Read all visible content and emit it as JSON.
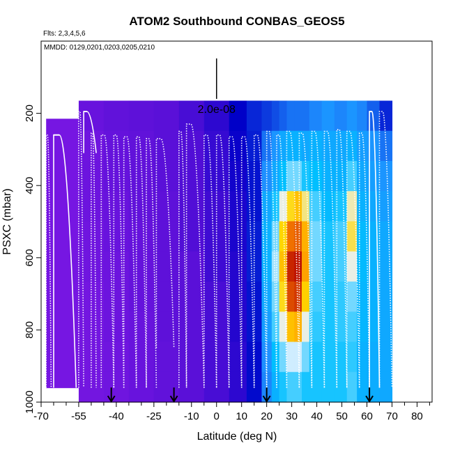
{
  "chart_data": {
    "type": "heatmap",
    "title": "ATOM2 Southbound CONBAS_GEOS5",
    "flights_label": "Flts: 2,3,4,5,6",
    "dates_label": "MMDD: 0129,0201,0203,0205,0210",
    "xlabel": "Latitude (deg N)",
    "ylabel": "PSXC (mbar)",
    "xlim": [
      -70,
      86
    ],
    "ylim": [
      1000,
      0
    ],
    "x_ticks": [
      -70,
      -55,
      -40,
      -25,
      -10,
      0,
      10,
      20,
      30,
      40,
      50,
      60,
      70,
      80
    ],
    "x_tick_labels": [
      "-70",
      "-55",
      "-40",
      "-25",
      "-10",
      "0",
      "10",
      "20",
      "30",
      "40",
      "50",
      "60",
      "70",
      "80"
    ],
    "x_minor_ticks": [
      -65,
      -60,
      -50,
      -45,
      -35,
      -30,
      -20,
      -15,
      -5,
      5,
      15,
      25,
      35,
      45,
      55,
      65,
      75,
      85
    ],
    "y_ticks": [
      200,
      400,
      600,
      800,
      1000
    ],
    "y_tick_labels": [
      "200",
      "400",
      "600",
      "800",
      "1000"
    ],
    "scale_marker": {
      "x": 0,
      "p_top": 48,
      "p_bottom": 160,
      "label": "2.0e-08"
    },
    "arrows_lat": [
      -42,
      -17,
      20,
      61
    ],
    "heatmap_columns": [
      {
        "x0": -68,
        "x1": -55,
        "p_top": 215,
        "p_bottom": 960,
        "level": [
          0.12,
          0.12,
          0.12,
          0.12,
          0.12,
          0.12,
          0.12,
          0.12,
          0.12,
          0.12
        ]
      },
      {
        "x0": -55,
        "x1": -45,
        "p_top": 165,
        "p_bottom": 1000,
        "level": [
          0.16,
          0.14,
          0.15,
          0.15,
          0.14,
          0.14,
          0.13,
          0.13,
          0.13,
          0.13
        ]
      },
      {
        "x0": -45,
        "x1": -35,
        "p_top": 165,
        "p_bottom": 1000,
        "level": [
          0.18,
          0.17,
          0.17,
          0.16,
          0.16,
          0.15,
          0.15,
          0.15,
          0.14,
          0.14
        ]
      },
      {
        "x0": -35,
        "x1": -25,
        "p_top": 165,
        "p_bottom": 1000,
        "level": [
          0.19,
          0.18,
          0.18,
          0.18,
          0.17,
          0.17,
          0.17,
          0.16,
          0.16,
          0.16
        ]
      },
      {
        "x0": -25,
        "x1": -15,
        "p_top": 165,
        "p_bottom": 1000,
        "level": [
          0.2,
          0.2,
          0.2,
          0.19,
          0.19,
          0.19,
          0.19,
          0.19,
          0.18,
          0.18
        ]
      },
      {
        "x0": -15,
        "x1": -5,
        "p_top": 165,
        "p_bottom": 1000,
        "level": [
          0.22,
          0.21,
          0.21,
          0.21,
          0.21,
          0.2,
          0.2,
          0.2,
          0.2,
          0.2
        ]
      },
      {
        "x0": -5,
        "x1": 5,
        "p_top": 165,
        "p_bottom": 1000,
        "level": [
          0.25,
          0.24,
          0.24,
          0.23,
          0.23,
          0.23,
          0.22,
          0.22,
          0.22,
          0.22
        ]
      },
      {
        "x0": 5,
        "x1": 12,
        "p_top": 165,
        "p_bottom": 1000,
        "level": [
          0.3,
          0.29,
          0.28,
          0.27,
          0.27,
          0.26,
          0.26,
          0.26,
          0.25,
          0.25
        ]
      },
      {
        "x0": 12,
        "x1": 18,
        "p_top": 165,
        "p_bottom": 1000,
        "level": [
          0.34,
          0.33,
          0.32,
          0.32,
          0.33,
          0.33,
          0.32,
          0.32,
          0.31,
          0.31
        ]
      },
      {
        "x0": 18,
        "x1": 22,
        "p_top": 165,
        "p_bottom": 1000,
        "level": [
          0.36,
          0.42,
          0.45,
          0.5,
          0.52,
          0.52,
          0.5,
          0.48,
          0.45,
          0.44
        ]
      },
      {
        "x0": 22,
        "x1": 25,
        "p_top": 165,
        "p_bottom": 1000,
        "level": [
          0.38,
          0.46,
          0.5,
          0.56,
          0.6,
          0.62,
          0.6,
          0.58,
          0.55,
          0.52
        ]
      },
      {
        "x0": 25,
        "x1": 28,
        "p_top": 165,
        "p_bottom": 1000,
        "level": [
          0.4,
          0.5,
          0.55,
          0.66,
          0.75,
          0.78,
          0.74,
          0.66,
          0.6,
          0.56
        ]
      },
      {
        "x0": 28,
        "x1": 31,
        "p_top": 165,
        "p_bottom": 1000,
        "level": [
          0.42,
          0.52,
          0.6,
          0.74,
          0.88,
          0.96,
          0.92,
          0.78,
          0.64,
          0.58
        ]
      },
      {
        "x0": 31,
        "x1": 34,
        "p_top": 165,
        "p_bottom": 1000,
        "level": [
          0.42,
          0.52,
          0.6,
          0.78,
          0.9,
          0.98,
          0.94,
          0.8,
          0.64,
          0.58
        ]
      },
      {
        "x0": 34,
        "x1": 37,
        "p_top": 165,
        "p_bottom": 1000,
        "level": [
          0.42,
          0.5,
          0.56,
          0.7,
          0.8,
          0.82,
          0.76,
          0.66,
          0.6,
          0.56
        ]
      },
      {
        "x0": 37,
        "x1": 42,
        "p_top": 165,
        "p_bottom": 1000,
        "level": [
          0.44,
          0.52,
          0.55,
          0.58,
          0.6,
          0.6,
          0.58,
          0.57,
          0.56,
          0.56
        ]
      },
      {
        "x0": 42,
        "x1": 47,
        "p_top": 165,
        "p_bottom": 1000,
        "level": [
          0.46,
          0.5,
          0.52,
          0.54,
          0.56,
          0.56,
          0.56,
          0.56,
          0.56,
          0.56
        ]
      },
      {
        "x0": 47,
        "x1": 52,
        "p_top": 165,
        "p_bottom": 1000,
        "level": [
          0.44,
          0.5,
          0.52,
          0.56,
          0.58,
          0.58,
          0.57,
          0.57,
          0.56,
          0.56
        ]
      },
      {
        "x0": 52,
        "x1": 56,
        "p_top": 165,
        "p_bottom": 1000,
        "level": [
          0.46,
          0.52,
          0.58,
          0.68,
          0.72,
          0.66,
          0.6,
          0.58,
          0.57,
          0.58
        ]
      },
      {
        "x0": 56,
        "x1": 60,
        "p_top": 165,
        "p_bottom": 1000,
        "level": [
          0.44,
          0.48,
          0.5,
          0.52,
          0.54,
          0.54,
          0.53,
          0.53,
          0.52,
          0.52
        ]
      },
      {
        "x0": 60,
        "x1": 65,
        "p_top": 165,
        "p_bottom": 1000,
        "level": [
          0.4,
          0.46,
          0.48,
          0.5,
          0.52,
          0.52,
          0.52,
          0.52,
          0.51,
          0.51
        ]
      },
      {
        "x0": 65,
        "x1": 70,
        "p_top": 165,
        "p_bottom": 1000,
        "level": [
          0.34,
          0.42,
          0.46,
          0.48,
          0.5,
          0.5,
          0.5,
          0.5,
          0.5,
          0.5
        ]
      }
    ],
    "colorscale": [
      {
        "stop": 0.0,
        "color": "#a020f0"
      },
      {
        "stop": 0.2,
        "color": "#5a10d8"
      },
      {
        "stop": 0.3,
        "color": "#0000c8"
      },
      {
        "stop": 0.45,
        "color": "#1e90ff"
      },
      {
        "stop": 0.55,
        "color": "#00bfff"
      },
      {
        "stop": 0.65,
        "color": "#e6f2ff"
      },
      {
        "stop": 0.75,
        "color": "#ffd700"
      },
      {
        "stop": 0.85,
        "color": "#ff8c00"
      },
      {
        "stop": 1.0,
        "color": "#b40000"
      }
    ],
    "profiles": [
      {
        "lat0": -68,
        "lat1": -66,
        "p_top": 260,
        "p_bottom": 960,
        "style": "dotted"
      },
      {
        "lat0": -65,
        "lat1": -56,
        "p_top": 260,
        "p_bottom": 960,
        "style": "solid-top"
      },
      {
        "lat0": -55,
        "lat1": -53,
        "p_top": 195,
        "p_bottom": 960,
        "style": "dotted"
      },
      {
        "lat0": -53,
        "lat1": -48,
        "p_top": 195,
        "p_bottom": 310,
        "style": "solid"
      },
      {
        "lat0": -50,
        "lat1": -48,
        "p_top": 255,
        "p_bottom": 960,
        "style": "dotted"
      },
      {
        "lat0": -46,
        "lat1": -41,
        "p_top": 260,
        "p_bottom": 960,
        "style": "dotted"
      },
      {
        "lat0": -41,
        "lat1": -37,
        "p_top": 260,
        "p_bottom": 960,
        "style": "dotted"
      },
      {
        "lat0": -37,
        "lat1": -32,
        "p_top": 265,
        "p_bottom": 960,
        "style": "dotted"
      },
      {
        "lat0": -32,
        "lat1": -28,
        "p_top": 265,
        "p_bottom": 960,
        "style": "dotted"
      },
      {
        "lat0": -28,
        "lat1": -24,
        "p_top": 270,
        "p_bottom": 960,
        "style": "dotted"
      },
      {
        "lat0": -24,
        "lat1": -17,
        "p_top": 270,
        "p_bottom": 850,
        "style": "dotted"
      },
      {
        "lat0": -15,
        "lat1": -12,
        "p_top": 250,
        "p_bottom": 960,
        "style": "dotted"
      },
      {
        "lat0": -12,
        "lat1": -5,
        "p_top": 230,
        "p_bottom": 960,
        "style": "dotted"
      },
      {
        "lat0": -5,
        "lat1": 0,
        "p_top": 260,
        "p_bottom": 960,
        "style": "dotted"
      },
      {
        "lat0": 0,
        "lat1": 5,
        "p_top": 260,
        "p_bottom": 960,
        "style": "dotted"
      },
      {
        "lat0": 5,
        "lat1": 10,
        "p_top": 265,
        "p_bottom": 960,
        "style": "dotted"
      },
      {
        "lat0": 10,
        "lat1": 15,
        "p_top": 265,
        "p_bottom": 960,
        "style": "dotted"
      },
      {
        "lat0": 15,
        "lat1": 20,
        "p_top": 260,
        "p_bottom": 960,
        "style": "dotted"
      },
      {
        "lat0": 20,
        "lat1": 24,
        "p_top": 250,
        "p_bottom": 960,
        "style": "dotted"
      },
      {
        "lat0": 24,
        "lat1": 28,
        "p_top": 260,
        "p_bottom": 960,
        "style": "dotted"
      },
      {
        "lat0": 28,
        "lat1": 33,
        "p_top": 250,
        "p_bottom": 960,
        "style": "dotted"
      },
      {
        "lat0": 33,
        "lat1": 38,
        "p_top": 255,
        "p_bottom": 960,
        "style": "dotted"
      },
      {
        "lat0": 38,
        "lat1": 43,
        "p_top": 250,
        "p_bottom": 960,
        "style": "dotted"
      },
      {
        "lat0": 43,
        "lat1": 48,
        "p_top": 250,
        "p_bottom": 960,
        "style": "dotted"
      },
      {
        "lat0": 48,
        "lat1": 52,
        "p_top": 245,
        "p_bottom": 960,
        "style": "dotted"
      },
      {
        "lat0": 52,
        "lat1": 57,
        "p_top": 250,
        "p_bottom": 960,
        "style": "dotted"
      },
      {
        "lat0": 57,
        "lat1": 61,
        "p_top": 255,
        "p_bottom": 960,
        "style": "dotted"
      },
      {
        "lat0": 61,
        "lat1": 65,
        "p_top": 195,
        "p_bottom": 960,
        "style": "solid-top"
      },
      {
        "lat0": 65,
        "lat1": 70,
        "p_top": 195,
        "p_bottom": 960,
        "style": "dotted"
      }
    ]
  }
}
